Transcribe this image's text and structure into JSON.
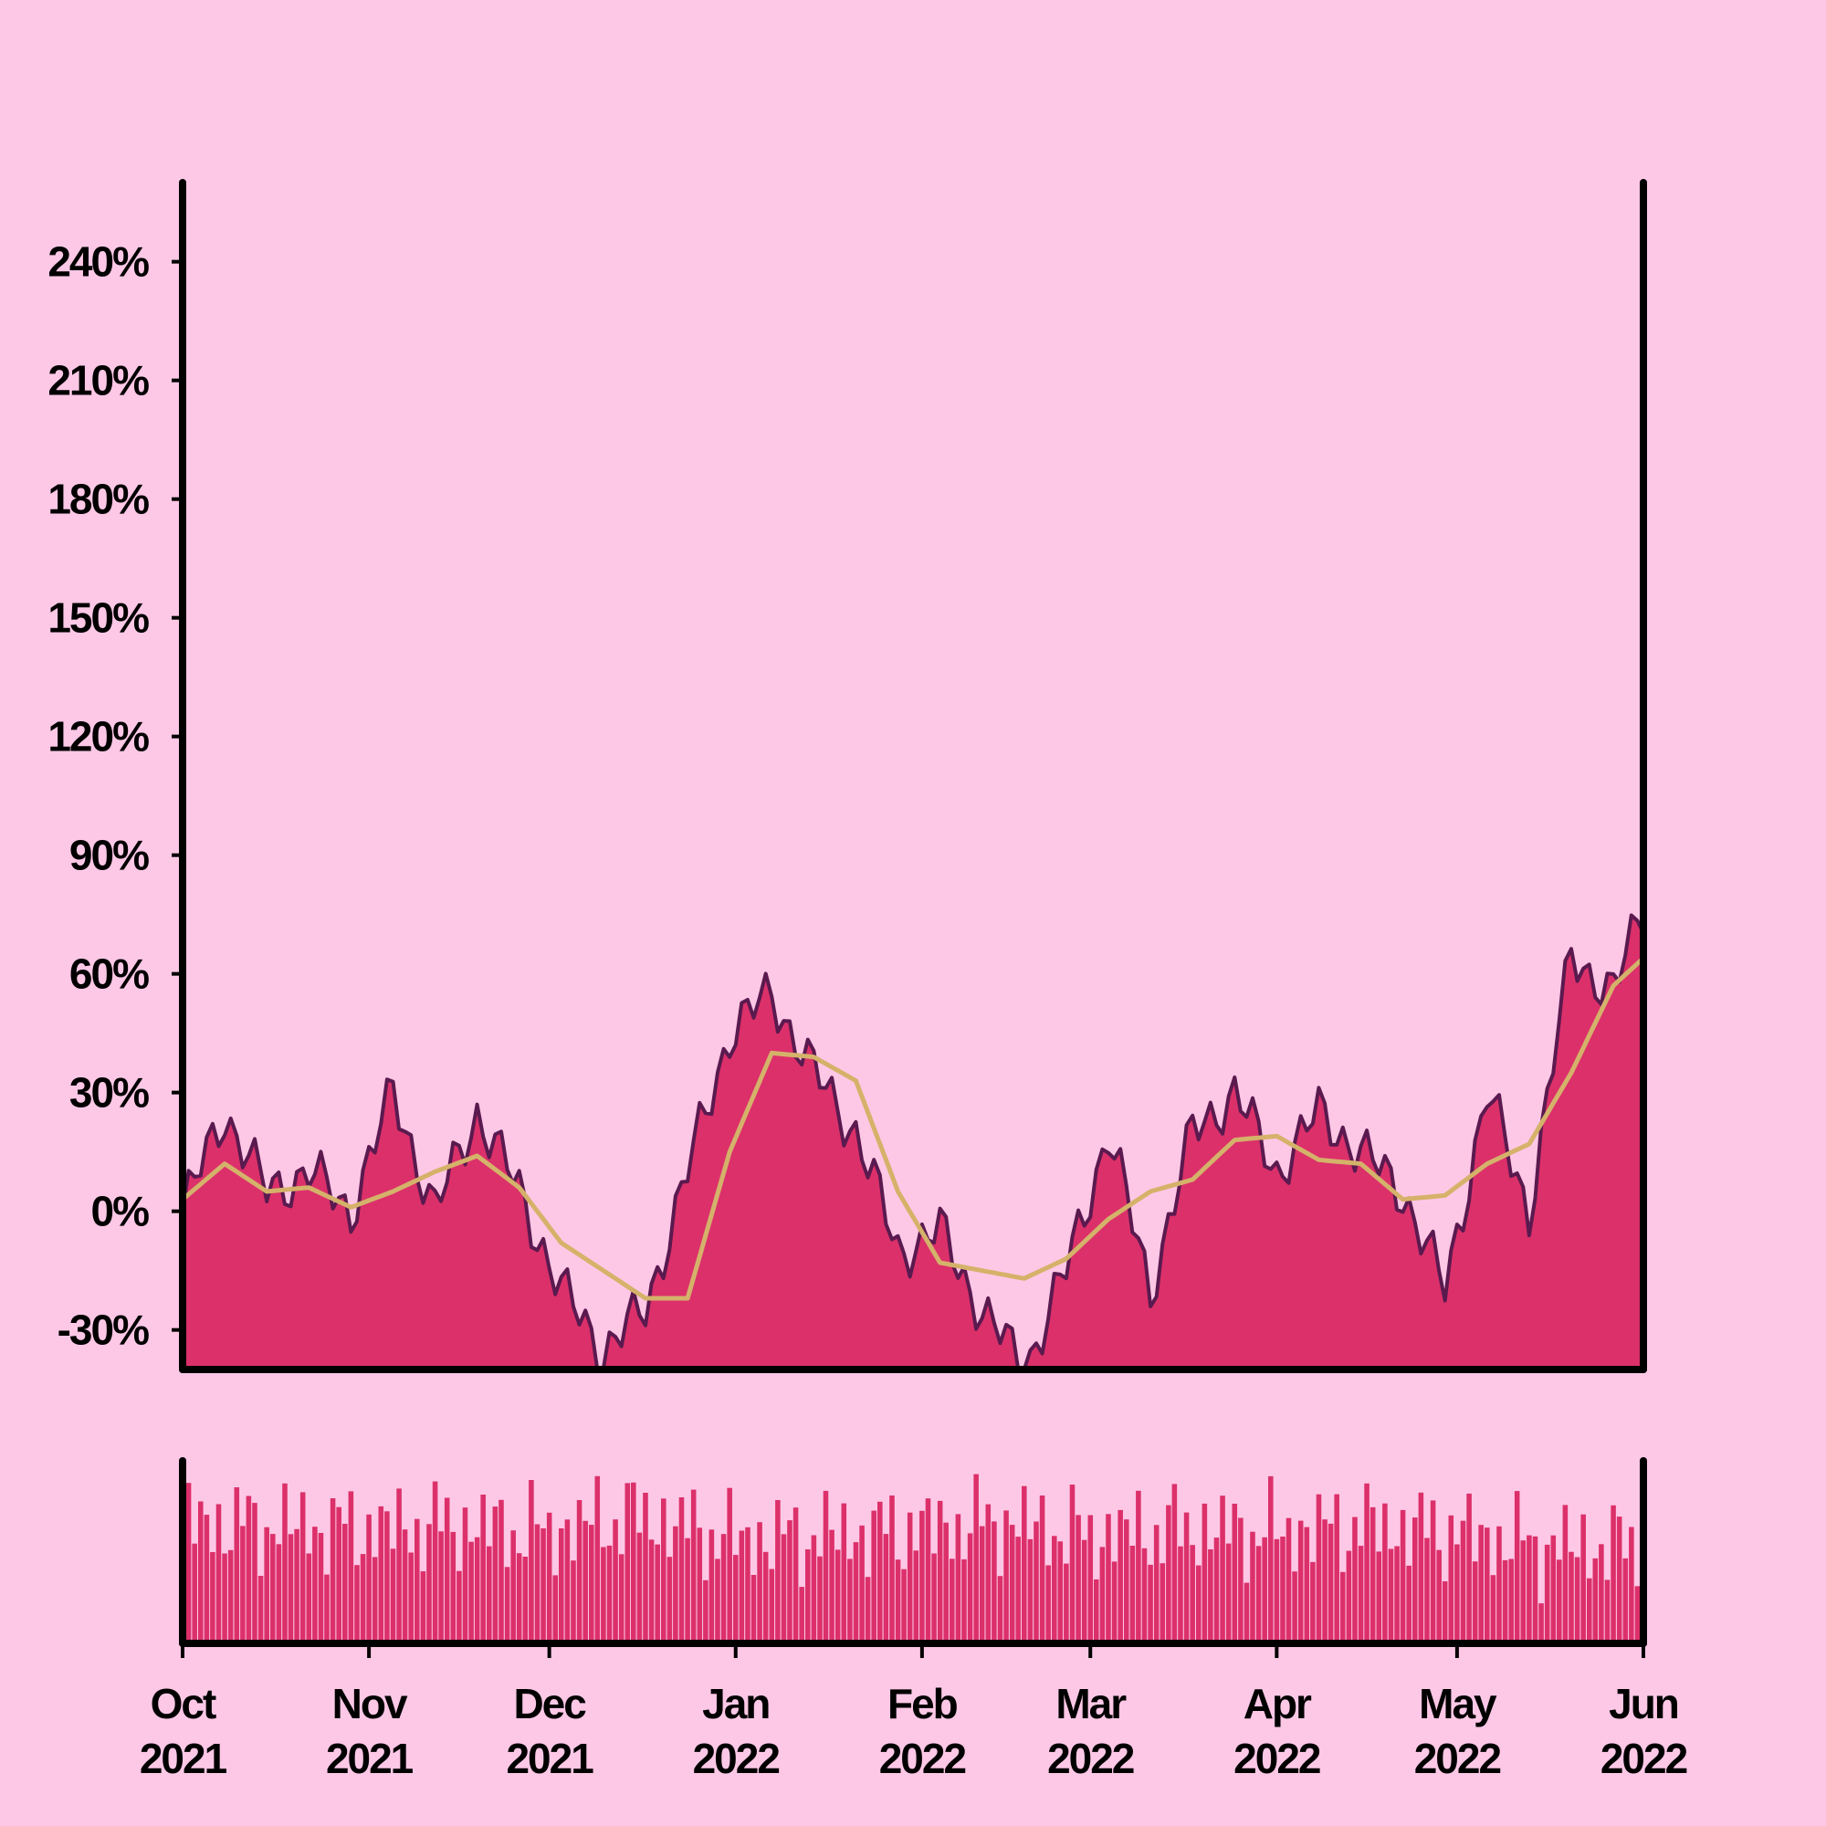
{
  "chart_data": [
    {
      "type": "area",
      "role": "price-change",
      "y_unit": "%",
      "ylim": [
        -40,
        260
      ],
      "y_ticks": [
        -30,
        0,
        30,
        60,
        90,
        120,
        150,
        180,
        210,
        240
      ],
      "y_tick_labels": [
        "-30%",
        "0%",
        "30%",
        "60%",
        "90%",
        "120%",
        "150%",
        "180%",
        "210%",
        "240%"
      ],
      "grid": false,
      "series": [
        {
          "kind": "area",
          "x": [
            "2021-10-01",
            "2021-10-08",
            "2021-10-15",
            "2021-10-22",
            "2021-10-29",
            "2021-11-05",
            "2021-11-12",
            "2021-11-19",
            "2021-11-26",
            "2021-12-03",
            "2021-12-10",
            "2021-12-17",
            "2021-12-24",
            "2021-12-31",
            "2022-01-07",
            "2022-01-14",
            "2022-01-21",
            "2022-01-28",
            "2022-02-04",
            "2022-02-11",
            "2022-02-18",
            "2022-02-25",
            "2022-03-04",
            "2022-03-11",
            "2022-03-18",
            "2022-03-25",
            "2022-04-01",
            "2022-04-08",
            "2022-04-15",
            "2022-04-22",
            "2022-04-29",
            "2022-05-06",
            "2022-05-13",
            "2022-05-20",
            "2022-05-27",
            "2022-06-01"
          ],
          "values": [
            0,
            25,
            5,
            10,
            0,
            30,
            0,
            25,
            5,
            -20,
            -35,
            -25,
            10,
            45,
            55,
            35,
            20,
            -10,
            -5,
            -25,
            -40,
            -15,
            20,
            -20,
            20,
            30,
            10,
            25,
            15,
            5,
            -20,
            30,
            0,
            65,
            55,
            77
          ]
        },
        {
          "kind": "line",
          "x": [
            "2021-10-01",
            "2021-10-08",
            "2021-10-15",
            "2021-10-22",
            "2021-10-29",
            "2021-11-05",
            "2021-11-12",
            "2021-11-19",
            "2021-11-26",
            "2021-12-03",
            "2021-12-10",
            "2021-12-17",
            "2021-12-24",
            "2021-12-31",
            "2022-01-07",
            "2022-01-14",
            "2022-01-21",
            "2022-01-28",
            "2022-02-04",
            "2022-02-11",
            "2022-02-18",
            "2022-02-25",
            "2022-03-04",
            "2022-03-11",
            "2022-03-18",
            "2022-03-25",
            "2022-04-01",
            "2022-04-08",
            "2022-04-15",
            "2022-04-22",
            "2022-04-29",
            "2022-05-06",
            "2022-05-13",
            "2022-05-20",
            "2022-05-27",
            "2022-06-01"
          ],
          "values": [
            3,
            12,
            5,
            6,
            1,
            5,
            10,
            14,
            6,
            -8,
            -15,
            -22,
            -22,
            15,
            40,
            39,
            33,
            5,
            -13,
            -15,
            -17,
            -12,
            -2,
            5,
            8,
            18,
            19,
            13,
            12,
            3,
            4,
            12,
            17,
            35,
            57,
            64
          ]
        }
      ],
      "colors": {
        "fill": "#dc306a",
        "line": "#5a1a4f",
        "moving_average": "#d4b26a",
        "background": "#fdc8e6",
        "axis": "#000000"
      }
    },
    {
      "type": "bar",
      "role": "volume",
      "x_tick_labels": [
        [
          "Oct",
          "2021"
        ],
        [
          "Nov",
          "2021"
        ],
        [
          "Dec",
          "2021"
        ],
        [
          "Jan",
          "2022"
        ],
        [
          "Feb",
          "2022"
        ],
        [
          "Mar",
          "2022"
        ],
        [
          "Apr",
          "2022"
        ],
        [
          "May",
          "2022"
        ],
        [
          "Jun",
          "2022"
        ]
      ],
      "x_ticks": [
        "2021-10-01",
        "2021-11-01",
        "2021-12-01",
        "2022-01-01",
        "2022-02-01",
        "2022-03-01",
        "2022-04-01",
        "2022-05-01",
        "2022-06-01"
      ],
      "x": [
        "2021-10-01",
        "2021-10-15",
        "2021-11-01",
        "2021-11-15",
        "2021-12-01",
        "2021-12-15",
        "2022-01-01",
        "2022-01-15",
        "2022-02-01",
        "2022-02-15",
        "2022-03-01",
        "2022-03-15",
        "2022-04-01",
        "2022-04-15",
        "2022-05-01",
        "2022-05-15",
        "2022-06-01"
      ],
      "values": [
        0.7,
        0.68,
        0.66,
        0.68,
        0.64,
        0.74,
        0.6,
        0.62,
        0.66,
        0.7,
        0.62,
        0.66,
        0.64,
        0.68,
        0.64,
        0.56,
        0.56
      ],
      "ylim": [
        0,
        1
      ],
      "colors": {
        "fill": "#dc306a"
      }
    }
  ]
}
